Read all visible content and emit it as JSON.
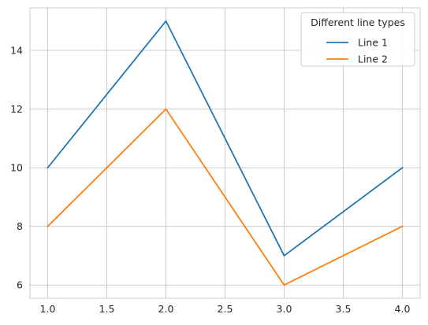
{
  "chart_data": {
    "type": "line",
    "x": [
      1.0,
      2.0,
      3.0,
      4.0
    ],
    "series": [
      {
        "name": "Line 1",
        "values": [
          10,
          15,
          7,
          10
        ],
        "color": "#1f77b4"
      },
      {
        "name": "Line 2",
        "values": [
          8,
          12,
          6,
          8
        ],
        "color": "#ff7f0e"
      }
    ],
    "xlim": [
      0.85,
      4.15
    ],
    "ylim": [
      5.55,
      15.45
    ],
    "xticks": [
      1.0,
      1.5,
      2.0,
      2.5,
      3.0,
      3.5,
      4.0
    ],
    "xtick_labels": [
      "1.0",
      "1.5",
      "2.0",
      "2.5",
      "3.0",
      "3.5",
      "4.0"
    ],
    "yticks": [
      6,
      8,
      10,
      12,
      14
    ],
    "ytick_labels": [
      "6",
      "8",
      "10",
      "12",
      "14"
    ],
    "grid": true,
    "legend": {
      "title": "Different line types",
      "placement": "upper-right"
    },
    "title": "",
    "xlabel": "",
    "ylabel": ""
  }
}
